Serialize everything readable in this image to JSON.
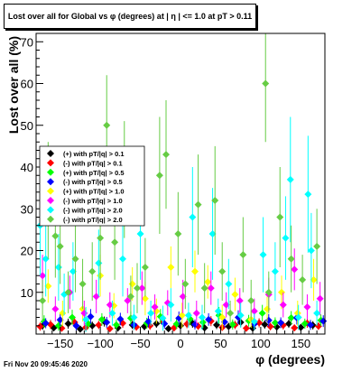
{
  "title": "Lost over all for Global vs φ (degrees) at | η | <= 1.0 at pT > 0.11",
  "footer": "Fri Nov 20 09:45:46 2020",
  "chart_data": {
    "type": "scatter",
    "xlabel": "φ (degrees)",
    "ylabel": "Lost over all (%)",
    "xlim": [
      -180,
      180
    ],
    "ylim": [
      0,
      72
    ],
    "xticks": [
      -150,
      -100,
      -50,
      0,
      50,
      100,
      150
    ],
    "xtick_labels": [
      "−150",
      "−100",
      "−50",
      "0",
      "50",
      "100",
      "150"
    ],
    "yticks": [
      10,
      20,
      30,
      40,
      50,
      60,
      70
    ],
    "legend_position": "left",
    "grid": false,
    "series": [
      {
        "name": "(+) with pT/|q| > 0.1",
        "color": "#000000",
        "points": [
          [
            -172,
            2.0,
            1.0
          ],
          [
            -158,
            1.5,
            0.8
          ],
          [
            -140,
            2.5,
            1.2
          ],
          [
            -125,
            1.2,
            0.8
          ],
          [
            -110,
            2.0,
            1.0
          ],
          [
            -95,
            3.0,
            1.2
          ],
          [
            -78,
            1.5,
            0.9
          ],
          [
            -60,
            2.2,
            1.0
          ],
          [
            -45,
            1.8,
            0.9
          ],
          [
            -30,
            2.5,
            1.0
          ],
          [
            -15,
            1.3,
            0.8
          ],
          [
            0,
            2.0,
            1.0
          ],
          [
            15,
            2.6,
            1.1
          ],
          [
            30,
            1.5,
            0.8
          ],
          [
            45,
            2.2,
            1.0
          ],
          [
            60,
            1.8,
            0.9
          ],
          [
            75,
            2.8,
            1.1
          ],
          [
            90,
            1.4,
            0.8
          ],
          [
            105,
            2.3,
            1.0
          ],
          [
            120,
            1.7,
            0.9
          ],
          [
            135,
            2.5,
            1.0
          ],
          [
            150,
            1.6,
            0.8
          ],
          [
            165,
            2.1,
            1.0
          ]
        ]
      },
      {
        "name": "(-) with pT/|q| > 0.1",
        "color": "#ff0000",
        "points": [
          [
            -175,
            1.8,
            1.0
          ],
          [
            -162,
            2.3,
            1.1
          ],
          [
            -148,
            1.4,
            0.8
          ],
          [
            -132,
            2.8,
            1.2
          ],
          [
            -118,
            1.6,
            0.9
          ],
          [
            -102,
            2.2,
            1.0
          ],
          [
            -88,
            1.3,
            0.8
          ],
          [
            -72,
            2.6,
            1.1
          ],
          [
            -55,
            1.7,
            0.9
          ],
          [
            -38,
            2.0,
            1.0
          ],
          [
            -22,
            2.9,
            1.2
          ],
          [
            -8,
            1.5,
            0.8
          ],
          [
            8,
            2.4,
            1.0
          ],
          [
            22,
            1.9,
            0.9
          ],
          [
            38,
            3.1,
            1.2
          ],
          [
            52,
            1.6,
            0.8
          ],
          [
            68,
            2.2,
            1.0
          ],
          [
            82,
            1.4,
            0.8
          ],
          [
            98,
            2.7,
            1.1
          ],
          [
            112,
            1.8,
            0.9
          ],
          [
            128,
            2.1,
            1.0
          ],
          [
            142,
            1.5,
            0.8
          ],
          [
            158,
            2.6,
            1.1
          ],
          [
            172,
            1.9,
            0.9
          ]
        ]
      },
      {
        "name": "(+) with pT/|q| > 0.5",
        "color": "#00ff00",
        "points": [
          [
            -170,
            3.0,
            1.5
          ],
          [
            -152,
            2.0,
            1.2
          ],
          [
            -135,
            4.0,
            1.8
          ],
          [
            -115,
            2.5,
            1.3
          ],
          [
            -98,
            3.5,
            1.5
          ],
          [
            -80,
            2.2,
            1.2
          ],
          [
            -62,
            3.8,
            1.6
          ],
          [
            -42,
            2.6,
            1.3
          ],
          [
            -25,
            4.2,
            1.8
          ],
          [
            -5,
            2.4,
            1.2
          ],
          [
            12,
            3.6,
            1.5
          ],
          [
            28,
            2.8,
            1.3
          ],
          [
            48,
            4.5,
            2.0
          ],
          [
            65,
            2.3,
            1.2
          ],
          [
            85,
            3.2,
            1.4
          ],
          [
            102,
            5.0,
            2.0
          ],
          [
            118,
            2.7,
            1.3
          ],
          [
            138,
            3.9,
            1.6
          ],
          [
            155,
            2.5,
            1.2
          ],
          [
            175,
            3.3,
            1.4
          ]
        ]
      },
      {
        "name": "(-) with pT/|q| > 0.5",
        "color": "#0000ff",
        "points": [
          [
            -168,
            2.6,
            1.2
          ],
          [
            -150,
            3.4,
            1.5
          ],
          [
            -130,
            2.0,
            1.1
          ],
          [
            -112,
            4.2,
            1.8
          ],
          [
            -92,
            2.8,
            1.3
          ],
          [
            -75,
            3.6,
            1.5
          ],
          [
            -58,
            2.2,
            1.2
          ],
          [
            -40,
            3.0,
            1.4
          ],
          [
            -20,
            2.5,
            1.2
          ],
          [
            -2,
            3.8,
            1.6
          ],
          [
            18,
            2.3,
            1.2
          ],
          [
            35,
            3.5,
            1.5
          ],
          [
            55,
            2.9,
            1.3
          ],
          [
            72,
            4.0,
            1.7
          ],
          [
            92,
            2.4,
            1.2
          ],
          [
            110,
            3.3,
            1.5
          ],
          [
            125,
            2.7,
            1.3
          ],
          [
            145,
            3.9,
            1.6
          ],
          [
            162,
            2.2,
            1.2
          ],
          [
            178,
            3.1,
            1.4
          ]
        ]
      },
      {
        "name": "(+) with pT/|q| > 1.0",
        "color": "#ffff00",
        "points": [
          [
            -165,
            11.5,
            4
          ],
          [
            -147,
            5.0,
            3
          ],
          [
            -122,
            6.0,
            3
          ],
          [
            -100,
            14.0,
            5
          ],
          [
            -83,
            6.8,
            3
          ],
          [
            -60,
            12.0,
            4
          ],
          [
            -44,
            8.5,
            4
          ],
          [
            -30,
            5.5,
            3
          ],
          [
            -12,
            16.0,
            5
          ],
          [
            2,
            4.5,
            3
          ],
          [
            18,
            15.0,
            5
          ],
          [
            34,
            12.5,
            4
          ],
          [
            52,
            4.0,
            3
          ],
          [
            68,
            9.5,
            4
          ],
          [
            88,
            3.5,
            2
          ],
          [
            108,
            6.0,
            3
          ],
          [
            126,
            10.0,
            4
          ],
          [
            146,
            5.0,
            3
          ],
          [
            166,
            13.0,
            5
          ]
        ]
      },
      {
        "name": "(-) with pT/|q| > 1.0",
        "color": "#ff00ff",
        "points": [
          [
            -172,
            14.0,
            5
          ],
          [
            -156,
            6.0,
            3
          ],
          [
            -138,
            10.0,
            4
          ],
          [
            -120,
            5.0,
            3
          ],
          [
            -105,
            9.0,
            4
          ],
          [
            -88,
            7.0,
            3
          ],
          [
            -66,
            8.0,
            3
          ],
          [
            -48,
            11.0,
            4
          ],
          [
            -32,
            6.5,
            3
          ],
          [
            -16,
            7.5,
            3
          ],
          [
            3,
            9.0,
            4
          ],
          [
            20,
            5.0,
            3
          ],
          [
            38,
            11.0,
            4
          ],
          [
            57,
            7.0,
            3
          ],
          [
            74,
            8.0,
            3
          ],
          [
            92,
            5.5,
            3
          ],
          [
            110,
            9.5,
            4
          ],
          [
            128,
            7.0,
            3
          ],
          [
            142,
            15.5,
            5
          ],
          [
            158,
            6.5,
            3
          ],
          [
            174,
            8.5,
            4
          ]
        ]
      },
      {
        "name": "(-) with pT/|q| > 2.0",
        "color": "#00ffff",
        "points": [
          [
            -175,
            26.0,
            12
          ],
          [
            -168,
            18.0,
            9
          ],
          [
            -152,
            16.0,
            8
          ],
          [
            -145,
            9.5,
            5
          ],
          [
            -134,
            15.0,
            7
          ],
          [
            -118,
            3.5,
            3
          ],
          [
            -102,
            17.0,
            8
          ],
          [
            -85,
            5.0,
            3
          ],
          [
            -72,
            18.0,
            9
          ],
          [
            -58,
            4.0,
            3
          ],
          [
            -50,
            24.0,
            11
          ],
          [
            -37,
            5.0,
            3
          ],
          [
            -22,
            3.8,
            3
          ],
          [
            -12,
            7.0,
            4
          ],
          [
            10,
            4.5,
            3
          ],
          [
            15,
            28.0,
            12
          ],
          [
            27,
            4.0,
            3
          ],
          [
            40,
            24.0,
            11
          ],
          [
            47,
            5.5,
            3
          ],
          [
            60,
            12.0,
            6
          ],
          [
            75,
            4.5,
            3
          ],
          [
            92,
            3.0,
            2
          ],
          [
            103,
            19.0,
            9
          ],
          [
            118,
            15.0,
            7
          ],
          [
            131,
            23.0,
            10
          ],
          [
            137,
            37.0,
            15
          ],
          [
            147,
            4.0,
            3
          ],
          [
            159,
            33.5,
            14
          ],
          [
            163,
            20.0,
            9
          ],
          [
            170,
            5.0,
            3
          ]
        ]
      },
      {
        "name": "(-) with pT/|q| > 2.0",
        "color": "#66cc44",
        "points": [
          [
            -172,
            8.0,
            5
          ],
          [
            -165,
            32.0,
            14
          ],
          [
            -156,
            23.5,
            10
          ],
          [
            -150,
            21.0,
            9
          ],
          [
            -140,
            10.0,
            5
          ],
          [
            -131,
            18.0,
            8
          ],
          [
            -122,
            12.0,
            6
          ],
          [
            -110,
            15.0,
            7
          ],
          [
            -100,
            23.0,
            10
          ],
          [
            -92,
            50.0,
            12
          ],
          [
            -82,
            22.0,
            9
          ],
          [
            -70,
            37.0,
            14
          ],
          [
            -62,
            9.0,
            5
          ],
          [
            -54,
            11.0,
            6
          ],
          [
            -44,
            16.0,
            7
          ],
          [
            -26,
            38.0,
            14
          ],
          [
            -18,
            43.0,
            13
          ],
          [
            -3,
            24.0,
            10
          ],
          [
            6,
            12.0,
            6
          ],
          [
            22,
            31.0,
            12
          ],
          [
            30,
            11.0,
            6
          ],
          [
            43,
            32.0,
            13
          ],
          [
            52,
            15.0,
            7
          ],
          [
            62,
            5.0,
            3
          ],
          [
            78,
            19.0,
            9
          ],
          [
            88,
            8.0,
            5
          ],
          [
            106,
            60.0,
            14
          ],
          [
            110,
            10.0,
            5
          ],
          [
            124,
            28.0,
            12
          ],
          [
            138,
            18.0,
            8
          ],
          [
            152,
            13.0,
            6
          ],
          [
            170,
            21.0,
            9
          ]
        ]
      }
    ]
  }
}
